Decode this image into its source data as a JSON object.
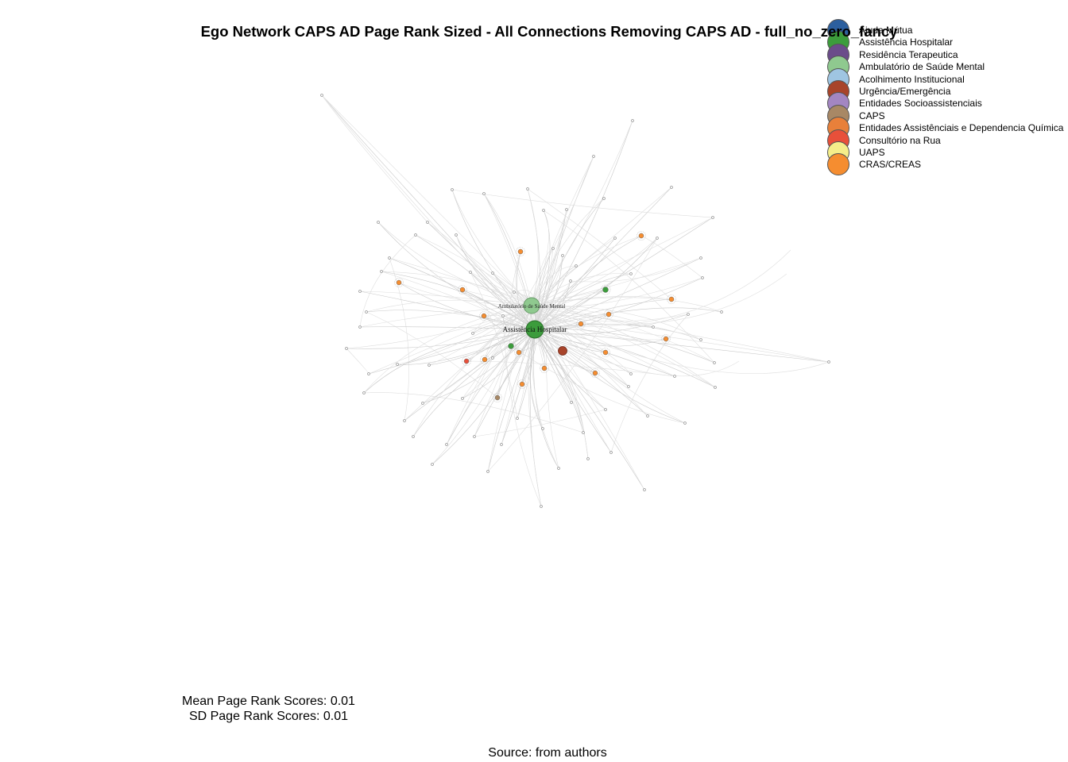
{
  "title": "Ego Network CAPS AD Page Rank Sized - All Connections Removing CAPS AD - full_no_zero_fancy",
  "legend": [
    {
      "label": "Ajuda Mútua",
      "color": "#2c5f9e"
    },
    {
      "label": "Assistência Hospitalar",
      "color": "#3c9c3c"
    },
    {
      "label": "Residência Terapeutica",
      "color": "#6b4c8a"
    },
    {
      "label": "Ambulatório de Saúde Mental",
      "color": "#8fc98f"
    },
    {
      "label": "Acolhimento Institucional",
      "color": "#9fc5e2"
    },
    {
      "label": "Urgência/Emergência",
      "color": "#a8442a"
    },
    {
      "label": "Entidades Socioassistenciais",
      "color": "#a386c2"
    },
    {
      "label": "CAPS",
      "color": "#a88865"
    },
    {
      "label": "Entidades Assistênciais e Dependencia Química",
      "color": "#e8803a"
    },
    {
      "label": "Consultório na Rua",
      "color": "#e8503a"
    },
    {
      "label": "UAPS",
      "color": "#f5ee8a"
    },
    {
      "label": "CRAS/CREAS",
      "color": "#f58d30"
    }
  ],
  "network": {
    "labeled_nodes": [
      {
        "label": "Ambulatório de Saúde Mental",
        "category": "Ambulatório de Saúde Mental"
      },
      {
        "label": "Assistência Hospitalar",
        "category": "Assistência Hospitalar"
      }
    ]
  },
  "stats": {
    "mean": "Mean Page Rank Scores: 0.01",
    "sd": "SD Page Rank Scores: 0.01"
  },
  "source": "Source: from authors"
}
